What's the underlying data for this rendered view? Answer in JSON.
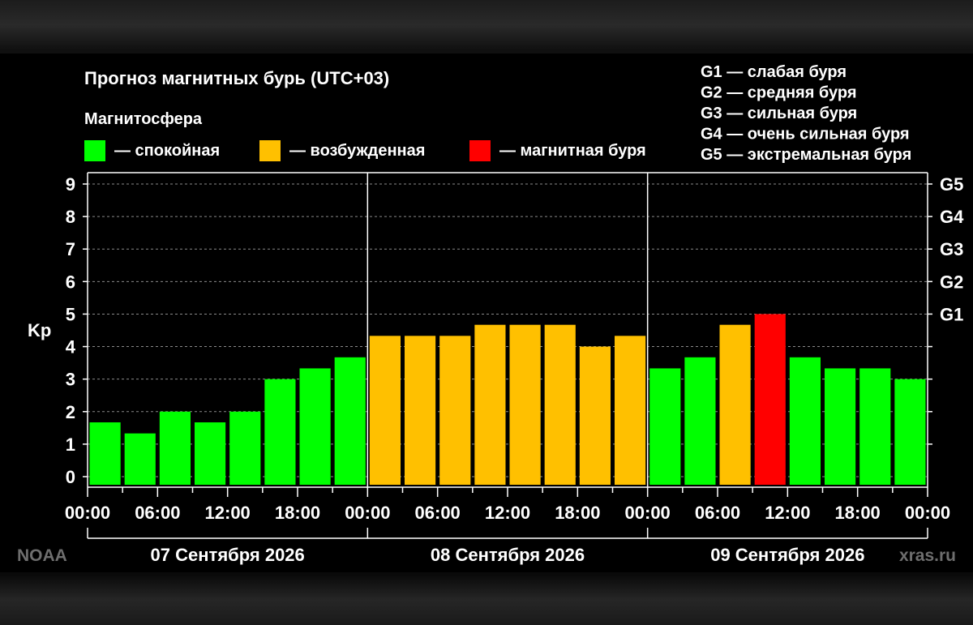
{
  "chart_data": {
    "type": "bar",
    "title": "Прогноз магнитных бурь (UTC+03)",
    "legend_title": "Магнитосфера",
    "legend": [
      {
        "label": "— спокойная",
        "color": "#00ff00"
      },
      {
        "label": "— возбужденная",
        "color": "#ffc000"
      },
      {
        "label": "— магнитная буря",
        "color": "#ff0000"
      }
    ],
    "g_legend": [
      "G1 — слабая буря",
      "G2 — средняя буря",
      "G3 — сильная буря",
      "G4 — очень сильная буря",
      "G5 — экстремальная буря"
    ],
    "ylabel": "Kp",
    "ylim": [
      0,
      9
    ],
    "yticks": [
      "0",
      "1",
      "2",
      "3",
      "4",
      "5",
      "6",
      "7",
      "8",
      "9"
    ],
    "right_ticks": [
      {
        "kp": 5,
        "label": "G1"
      },
      {
        "kp": 6,
        "label": "G2"
      },
      {
        "kp": 7,
        "label": "G3"
      },
      {
        "kp": 8,
        "label": "G4"
      },
      {
        "kp": 9,
        "label": "G5"
      }
    ],
    "xticks": [
      "00:00",
      "06:00",
      "12:00",
      "18:00",
      "00:00",
      "06:00",
      "12:00",
      "18:00",
      "00:00",
      "06:00",
      "12:00",
      "18:00",
      "00:00"
    ],
    "days": [
      "07 Сентября 2026",
      "08 Сентября 2026",
      "09 Сентября 2026"
    ],
    "grid": true,
    "interval_hours": 3,
    "values": [
      1.67,
      1.33,
      2.0,
      1.67,
      2.0,
      3.0,
      3.33,
      3.67,
      4.33,
      4.33,
      4.33,
      4.67,
      4.67,
      4.67,
      4.0,
      4.33,
      3.33,
      3.67,
      4.67,
      5.0,
      3.67,
      3.33,
      3.33,
      3.0
    ],
    "level_colors": {
      "quiet": "#00ff00",
      "unsettled": "#ffc000",
      "storm": "#ff0000"
    }
  },
  "footer": {
    "left": "NOAA",
    "right": "xras.ru"
  }
}
